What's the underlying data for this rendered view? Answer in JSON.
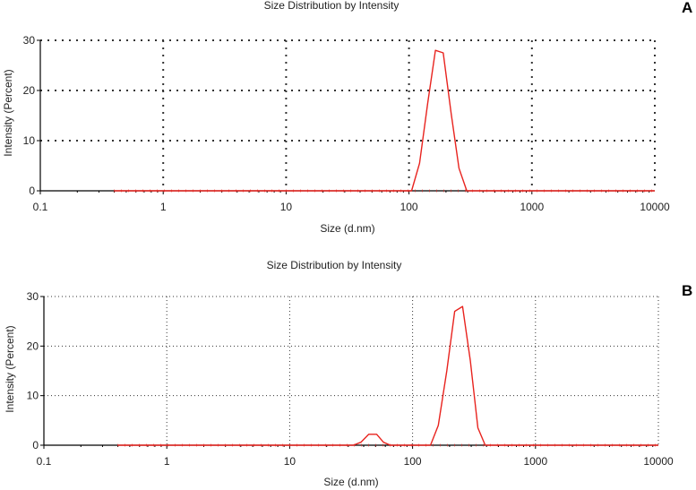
{
  "chart_data": [
    {
      "panel": "A",
      "type": "line",
      "title": "Size Distribution by Intensity",
      "xlabel": "Size (d.nm)",
      "ylabel": "Intensity (Percent)",
      "xscale": "log",
      "xlim": [
        0.1,
        10000
      ],
      "ylim": [
        0,
        30
      ],
      "x_ticks": [
        0.1,
        1,
        10,
        100,
        1000,
        10000
      ],
      "x_tick_labels": [
        "0.1",
        "1",
        "10",
        "100",
        "1000",
        "10000"
      ],
      "y_ticks": [
        0,
        10,
        20,
        30
      ],
      "y_tick_labels": [
        "0",
        "10",
        "20",
        "30"
      ],
      "grid": "dotted",
      "grid_style": "coarse-dash",
      "line_color": "#e8231e",
      "series": [
        {
          "x": [
            0.4,
            1,
            10,
            100,
            105,
            122,
            142,
            164,
            190,
            220,
            255,
            295,
            10000
          ],
          "values": [
            0,
            0,
            0,
            0,
            0,
            5.5,
            17.5,
            28,
            27.5,
            15.5,
            4.5,
            0,
            0
          ]
        }
      ]
    },
    {
      "panel": "B",
      "type": "line",
      "title": "Size Distribution by Intensity",
      "xlabel": "Size (d.nm)",
      "ylabel": "Intensity (Percent)",
      "xscale": "log",
      "xlim": [
        0.1,
        10000
      ],
      "ylim": [
        0,
        30
      ],
      "x_ticks": [
        0.1,
        1,
        10,
        100,
        1000,
        10000
      ],
      "x_tick_labels": [
        "0.1",
        "1",
        "10",
        "100",
        "1000",
        "10000"
      ],
      "y_ticks": [
        0,
        10,
        20,
        30
      ],
      "y_tick_labels": [
        "0",
        "10",
        "20",
        "30"
      ],
      "grid": "dotted",
      "grid_style": "fine-dot",
      "line_color": "#e8231e",
      "series": [
        {
          "x": [
            0.4,
            1,
            10,
            33,
            38,
            44,
            51,
            58,
            66,
            100,
            140,
            162,
            190,
            220,
            255,
            295,
            340,
            390,
            10000
          ],
          "values": [
            0,
            0,
            0,
            0,
            0.6,
            2.2,
            2.2,
            0.6,
            0,
            0,
            0,
            4,
            15,
            27,
            28,
            17,
            3.5,
            0,
            0
          ]
        }
      ]
    }
  ]
}
